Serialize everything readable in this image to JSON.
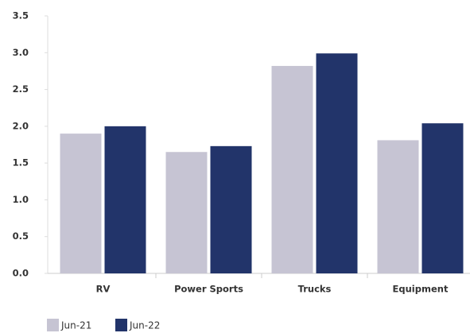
{
  "chart_data": {
    "type": "bar",
    "categories": [
      "RV",
      "Power Sports",
      "Trucks",
      "Equipment"
    ],
    "series": [
      {
        "name": "Jun-21",
        "color": "#c6c4d3",
        "values": [
          1.9,
          1.65,
          2.82,
          1.81
        ]
      },
      {
        "name": "Jun-22",
        "color": "#22346a",
        "values": [
          2.0,
          1.73,
          2.99,
          2.04
        ]
      }
    ],
    "ylim": [
      0,
      3.5
    ],
    "yticks": [
      {
        "value": 0,
        "label": "0.0"
      },
      0.5,
      {
        "value": 1,
        "label": "1.0"
      },
      1.5,
      {
        "value": 2,
        "label": "2.0"
      },
      2.5,
      {
        "value": 3,
        "label": "3.0"
      },
      3.5
    ],
    "grid": false,
    "legend": "bottom-left"
  }
}
